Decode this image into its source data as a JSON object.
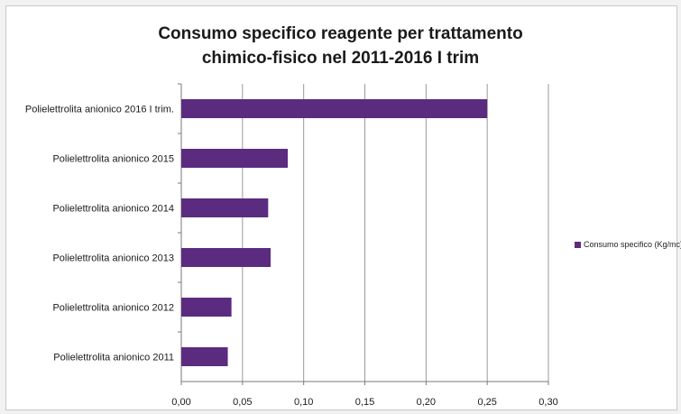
{
  "colors": {
    "bar": "#5b2b7f",
    "grid": "#9a9a9a",
    "axis": "#7a7a7a",
    "text": "#1a1a1a"
  },
  "chart_data": {
    "type": "bar",
    "orientation": "horizontal",
    "title_lines": [
      "Consumo specifico reagente per trattamento",
      "chimico-fisico  nel 2011-2016 I trim"
    ],
    "categories": [
      "Polielettrolita anionico 2016 I trim.",
      "Polielettrolita anionico 2015",
      "Polielettrolita anionico 2014",
      "Polielettrolita anionico 2013",
      "Polielettrolita anionico 2012",
      "Polielettrolita anionico 2011"
    ],
    "series": [
      {
        "name": "Consumo specifico (Kg/mc)",
        "values": [
          0.25,
          0.087,
          0.071,
          0.073,
          0.041,
          0.038
        ]
      }
    ],
    "xlim": [
      0,
      0.3
    ],
    "xticks": [
      "0,00",
      "0,05",
      "0,10",
      "0,15",
      "0,20",
      "0,25",
      "0,30"
    ],
    "grid": true,
    "legend_position": "right"
  }
}
